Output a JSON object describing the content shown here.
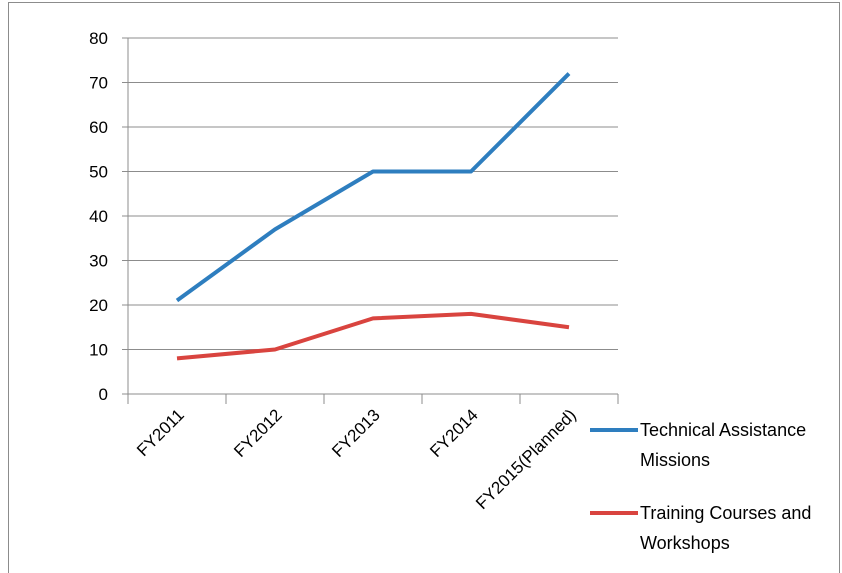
{
  "chart_data": {
    "type": "line",
    "categories": [
      "FY2011",
      "FY2012",
      "FY2013",
      "FY2014",
      "FY2015(Planned)"
    ],
    "series": [
      {
        "name": "Technical Assistance Missions",
        "color": "#2e7ebf",
        "values": [
          21,
          37,
          50,
          50,
          72
        ]
      },
      {
        "name": "Training Courses and Workshops",
        "color": "#d9443f",
        "values": [
          8,
          10,
          17,
          18,
          15
        ]
      }
    ],
    "ylim": [
      0,
      80
    ],
    "yticks": [
      0,
      10,
      20,
      30,
      40,
      50,
      60,
      70,
      80
    ],
    "grid": true,
    "legend": "right"
  }
}
